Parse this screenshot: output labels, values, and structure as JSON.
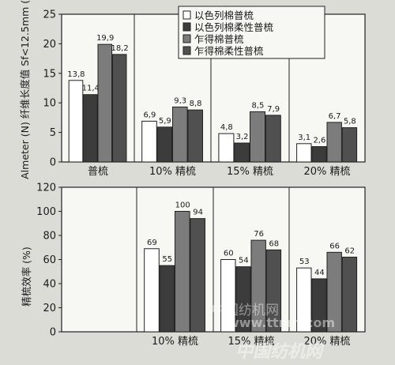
{
  "chart_data": [
    {
      "type": "bar",
      "ylabel": "Almeter (N) 纤维长度值 Sf<12.5mm (%)",
      "ylim": [
        0,
        25
      ],
      "yticks": [
        0,
        5,
        10,
        15,
        20,
        25
      ],
      "grid": false,
      "legend_position": "top-right",
      "categories": [
        "普梳",
        "10%  精梳",
        "15%  精梳",
        "20%  精梳"
      ],
      "series": [
        {
          "name": "以色列棉普梳",
          "color": "#ffffff",
          "values": [
            13.8,
            6.9,
            4.8,
            3.1
          ],
          "labels": [
            "13,8",
            "6,9",
            "4,8",
            "3,1"
          ]
        },
        {
          "name": "以色列棉柔性普梳",
          "color": "#3c3c3c",
          "values": [
            11.4,
            5.9,
            3.2,
            2.6
          ],
          "labels": [
            "11,4",
            "5,9",
            "3,2",
            "2,6"
          ]
        },
        {
          "name": "乍得棉普梳",
          "color": "#7c7c7c",
          "values": [
            19.9,
            9.3,
            8.5,
            6.7
          ],
          "labels": [
            "19,9",
            "9,3",
            "8,5",
            "6,7"
          ]
        },
        {
          "name": "乍得棉柔性普梳",
          "color": "#505050",
          "values": [
            18.2,
            8.8,
            7.9,
            5.8
          ],
          "labels": [
            "18,2",
            "8,8",
            "7,9",
            "5,8"
          ]
        }
      ]
    },
    {
      "type": "bar",
      "ylabel": "精梳效率 (%)",
      "ylim": [
        0,
        120
      ],
      "yticks": [
        0,
        20,
        40,
        60,
        80,
        100,
        120
      ],
      "grid": false,
      "categories": [
        "",
        "10%  精梳",
        "15%  精梳",
        "20%  精梳"
      ],
      "series": [
        {
          "name": "以色列棉普梳",
          "color": "#ffffff",
          "values": [
            null,
            69,
            60,
            53
          ],
          "labels": [
            "",
            "69",
            "60",
            "53"
          ]
        },
        {
          "name": "以色列棉柔性普梳",
          "color": "#3c3c3c",
          "values": [
            null,
            55,
            54,
            44
          ],
          "labels": [
            "",
            "55",
            "54",
            "44"
          ]
        },
        {
          "name": "乍得棉普梳",
          "color": "#7c7c7c",
          "values": [
            null,
            100,
            76,
            66
          ],
          "labels": [
            "",
            "100",
            "76",
            "66"
          ]
        },
        {
          "name": "乍得棉柔性普梳",
          "color": "#505050",
          "values": [
            null,
            94,
            68,
            62
          ],
          "labels": [
            "",
            "94",
            "68",
            "62"
          ]
        }
      ]
    }
  ],
  "watermark": {
    "line1": "中国纺机网",
    "line2": "www.ttmn.com",
    "line3": "中国纺机网"
  }
}
